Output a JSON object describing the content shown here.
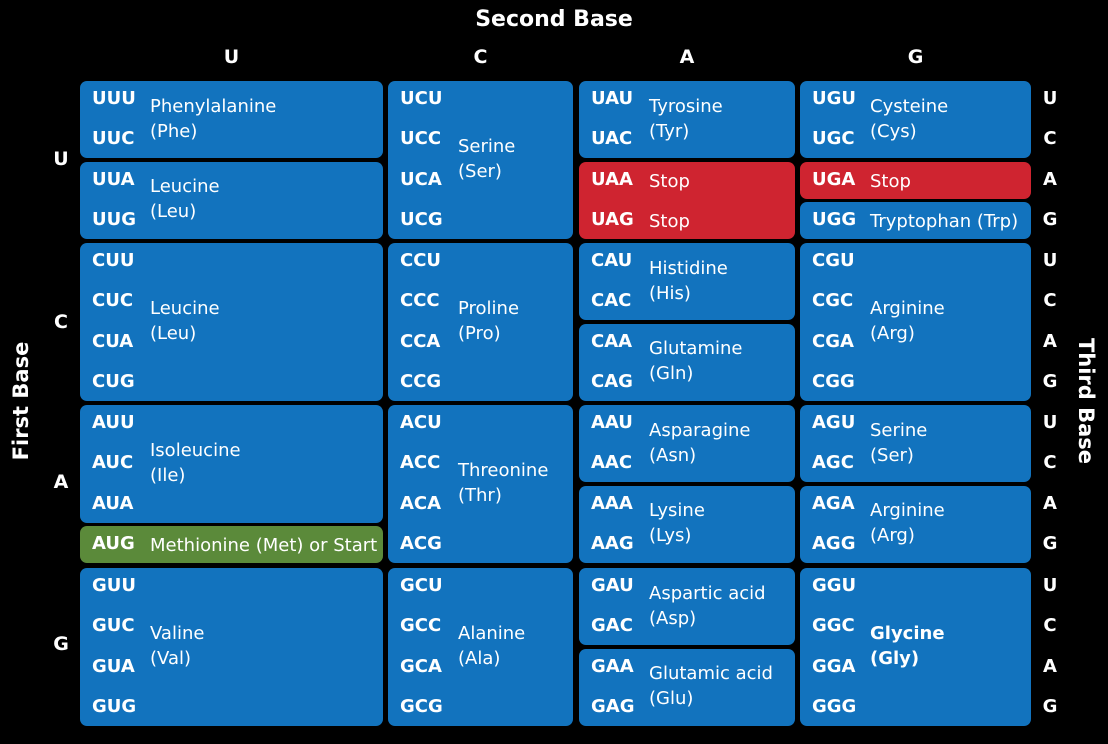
{
  "title": "Second Base",
  "first_base_label": "First Base",
  "third_base_label": "Third Base",
  "second_base_letters": [
    "U",
    "C",
    "A",
    "G"
  ],
  "first_base_letters": [
    "U",
    "C",
    "A",
    "G"
  ],
  "third_base_letters": [
    "U",
    "C",
    "A",
    "G",
    "U",
    "C",
    "A",
    "G",
    "U",
    "C",
    "A",
    "G",
    "U",
    "C",
    "A",
    "G"
  ],
  "colors": {
    "background": "#000000",
    "amino_acid": "#1273be",
    "stop": "#cf2430",
    "start": "#5b8a3a",
    "text": "#ffffff"
  },
  "groups": [
    {
      "col": 0,
      "row": 0,
      "span": 2,
      "type": "amino",
      "codons": [
        "UUU",
        "UUC"
      ],
      "name": "Phenylalanine",
      "abbr": "(Phe)"
    },
    {
      "col": 0,
      "row": 2,
      "span": 2,
      "type": "amino",
      "codons": [
        "UUA",
        "UUG"
      ],
      "name": "Leucine",
      "abbr": "(Leu)"
    },
    {
      "col": 0,
      "row": 4,
      "span": 4,
      "type": "amino",
      "codons": [
        "CUU",
        "CUC",
        "CUA",
        "CUG"
      ],
      "name": "Leucine",
      "abbr": "(Leu)"
    },
    {
      "col": 0,
      "row": 8,
      "span": 3,
      "type": "amino",
      "codons": [
        "AUU",
        "AUC",
        "AUA"
      ],
      "name": "Isoleucine",
      "abbr": "(Ile)"
    },
    {
      "col": 0,
      "row": 11,
      "span": 1,
      "type": "start",
      "codons": [
        "AUG"
      ],
      "name": "Methionine (Met) or Start",
      "abbr": ""
    },
    {
      "col": 0,
      "row": 12,
      "span": 4,
      "type": "amino",
      "codons": [
        "GUU",
        "GUC",
        "GUA",
        "GUG"
      ],
      "name": "Valine",
      "abbr": "(Val)"
    },
    {
      "col": 1,
      "row": 0,
      "span": 4,
      "type": "amino",
      "codons": [
        "UCU",
        "UCC",
        "UCA",
        "UCG"
      ],
      "name": "Serine",
      "abbr": "(Ser)"
    },
    {
      "col": 1,
      "row": 4,
      "span": 4,
      "type": "amino",
      "codons": [
        "CCU",
        "CCC",
        "CCA",
        "CCG"
      ],
      "name": "Proline",
      "abbr": "(Pro)"
    },
    {
      "col": 1,
      "row": 8,
      "span": 4,
      "type": "amino",
      "codons": [
        "ACU",
        "ACC",
        "ACA",
        "ACG"
      ],
      "name": "Threonine",
      "abbr": "(Thr)"
    },
    {
      "col": 1,
      "row": 12,
      "span": 4,
      "type": "amino",
      "codons": [
        "GCU",
        "GCC",
        "GCA",
        "GCG"
      ],
      "name": "Alanine",
      "abbr": "(Ala)"
    },
    {
      "col": 2,
      "row": 0,
      "span": 2,
      "type": "amino",
      "codons": [
        "UAU",
        "UAC"
      ],
      "name": "Tyrosine",
      "abbr": "(Tyr)"
    },
    {
      "col": 2,
      "row": 2,
      "span": 2,
      "type": "stop2",
      "codons": [
        "UAA",
        "UAG"
      ],
      "name": "Stop",
      "abbr": "Stop"
    },
    {
      "col": 2,
      "row": 4,
      "span": 2,
      "type": "amino",
      "codons": [
        "CAU",
        "CAC"
      ],
      "name": "Histidine",
      "abbr": "(His)"
    },
    {
      "col": 2,
      "row": 6,
      "span": 2,
      "type": "amino",
      "codons": [
        "CAA",
        "CAG"
      ],
      "name": "Glutamine",
      "abbr": "(Gln)"
    },
    {
      "col": 2,
      "row": 8,
      "span": 2,
      "type": "amino",
      "codons": [
        "AAU",
        "AAC"
      ],
      "name": "Asparagine",
      "abbr": "(Asn)"
    },
    {
      "col": 2,
      "row": 10,
      "span": 2,
      "type": "amino",
      "codons": [
        "AAA",
        "AAG"
      ],
      "name": "Lysine",
      "abbr": "(Lys)"
    },
    {
      "col": 2,
      "row": 12,
      "span": 2,
      "type": "amino",
      "codons": [
        "GAU",
        "GAC"
      ],
      "name": "Aspartic acid",
      "abbr": "(Asp)"
    },
    {
      "col": 2,
      "row": 14,
      "span": 2,
      "type": "amino",
      "codons": [
        "GAA",
        "GAG"
      ],
      "name": "Glutamic acid",
      "abbr": "(Glu)"
    },
    {
      "col": 3,
      "row": 0,
      "span": 2,
      "type": "amino",
      "codons": [
        "UGU",
        "UGC"
      ],
      "name": "Cysteine",
      "abbr": "(Cys)"
    },
    {
      "col": 3,
      "row": 2,
      "span": 1,
      "type": "stop",
      "codons": [
        "UGA"
      ],
      "name": "Stop",
      "abbr": ""
    },
    {
      "col": 3,
      "row": 3,
      "span": 1,
      "type": "single",
      "codons": [
        "UGG"
      ],
      "name": "Tryptophan (Trp)",
      "abbr": ""
    },
    {
      "col": 3,
      "row": 4,
      "span": 4,
      "type": "amino",
      "codons": [
        "CGU",
        "CGC",
        "CGA",
        "CGG"
      ],
      "name": "Arginine",
      "abbr": "(Arg)"
    },
    {
      "col": 3,
      "row": 8,
      "span": 2,
      "type": "amino",
      "codons": [
        "AGU",
        "AGC"
      ],
      "name": "Serine",
      "abbr": "(Ser)"
    },
    {
      "col": 3,
      "row": 10,
      "span": 2,
      "type": "amino",
      "codons": [
        "AGA",
        "AGG"
      ],
      "name": "Arginine",
      "abbr": "(Arg)"
    },
    {
      "col": 3,
      "row": 12,
      "span": 4,
      "type": "amino-bold",
      "codons": [
        "GGU",
        "GGC",
        "GGA",
        "GGG"
      ],
      "name": "Glycine",
      "abbr": "(Gly)"
    }
  ]
}
